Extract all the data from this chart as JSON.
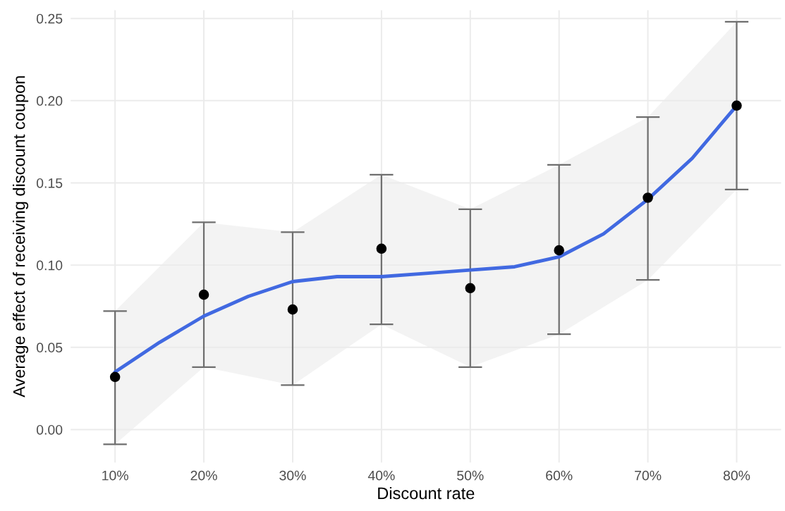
{
  "chart_data": {
    "type": "scatter",
    "xlabel": "Discount rate",
    "ylabel": "Average effect of receiving discount coupon",
    "x": [
      10,
      20,
      30,
      40,
      50,
      60,
      70,
      80
    ],
    "xlim": [
      5,
      85
    ],
    "xticks": [
      {
        "value": 10,
        "label": "10%"
      },
      {
        "value": 20,
        "label": "20%"
      },
      {
        "value": 30,
        "label": "30%"
      },
      {
        "value": 40,
        "label": "40%"
      },
      {
        "value": 50,
        "label": "50%"
      },
      {
        "value": 60,
        "label": "60%"
      },
      {
        "value": 70,
        "label": "70%"
      },
      {
        "value": 80,
        "label": "80%"
      }
    ],
    "ylim": [
      -0.02,
      0.255
    ],
    "yticks": [
      {
        "value": 0,
        "label": "0.00"
      },
      {
        "value": 0.05,
        "label": "0.05"
      },
      {
        "value": 0.1,
        "label": "0.10"
      },
      {
        "value": 0.15,
        "label": "0.15"
      },
      {
        "value": 0.2,
        "label": "0.20"
      },
      {
        "value": 0.25,
        "label": "0.25"
      }
    ],
    "grid": true,
    "series": [
      {
        "marker": "circle",
        "color": "#000000",
        "values": [
          0.032,
          0.082,
          0.073,
          0.11,
          0.086,
          0.109,
          0.141,
          0.197
        ],
        "errors": [
          [
            -0.009,
            0.072
          ],
          [
            0.038,
            0.126
          ],
          [
            0.027,
            0.12
          ],
          [
            0.064,
            0.155
          ],
          [
            0.038,
            0.134
          ],
          [
            0.058,
            0.161
          ],
          [
            0.091,
            0.19
          ],
          [
            0.146,
            0.248
          ]
        ],
        "lower": [
          -0.009,
          0.038,
          0.027,
          0.064,
          0.038,
          0.058,
          0.091,
          0.146
        ],
        "upper": [
          0.072,
          0.126,
          0.12,
          0.155,
          0.134,
          0.161,
          0.19,
          0.248
        ]
      },
      {
        "type": "line",
        "color": "#4169e1",
        "x": [
          10,
          15,
          20,
          25,
          30,
          35,
          40,
          45,
          50,
          55,
          60,
          65,
          70,
          75,
          80
        ],
        "values": [
          0.035,
          0.053,
          0.069,
          0.081,
          0.09,
          0.093,
          0.093,
          0.095,
          0.097,
          0.099,
          0.105,
          0.119,
          0.14,
          0.165,
          0.197
        ]
      }
    ]
  }
}
